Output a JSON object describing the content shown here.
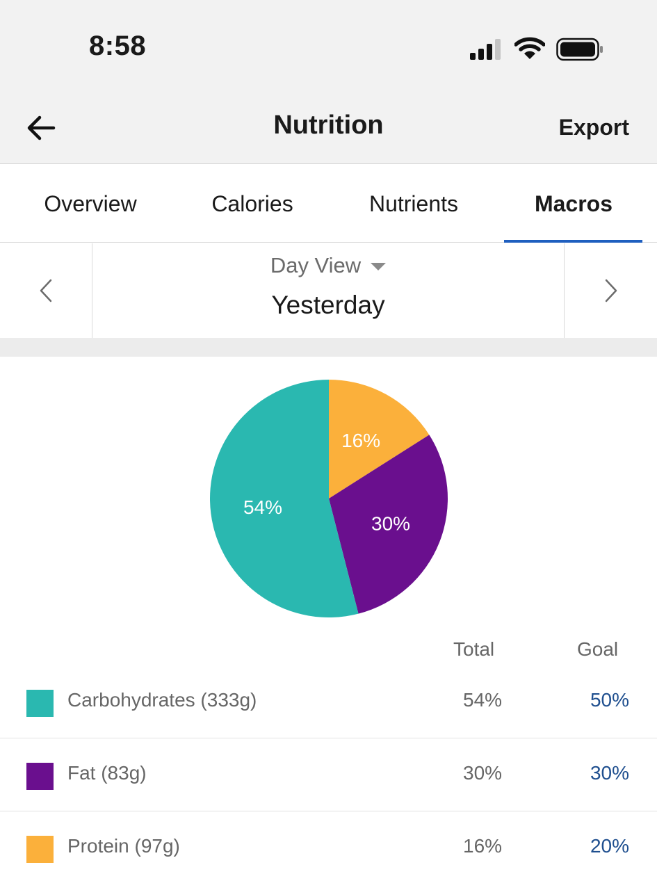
{
  "status_bar": {
    "time": "8:58"
  },
  "nav": {
    "title": "Nutrition",
    "export_label": "Export"
  },
  "tabs": [
    {
      "label": "Overview",
      "active": false
    },
    {
      "label": "Calories",
      "active": false
    },
    {
      "label": "Nutrients",
      "active": false
    },
    {
      "label": "Macros",
      "active": true
    }
  ],
  "date_nav": {
    "view_label": "Day View",
    "date_label": "Yesterday"
  },
  "colors": {
    "carbs": "#2ab8b0",
    "fat": "#6a0f8e",
    "protein": "#fbb03b",
    "goal_text": "#1f4f8f",
    "tab_active": "#1f5fbf"
  },
  "chart_data": {
    "type": "pie",
    "slices": [
      {
        "label": "16%",
        "value": 16,
        "color": "#fbb03b"
      },
      {
        "label": "30%",
        "value": 30,
        "color": "#6a0f8e"
      },
      {
        "label": "54%",
        "value": 54,
        "color": "#2ab8b0"
      }
    ]
  },
  "table": {
    "total_header": "Total",
    "goal_header": "Goal",
    "rows": [
      {
        "name": "Carbohydrates (333g)",
        "total": "54%",
        "goal": "50%",
        "color": "#2ab8b0"
      },
      {
        "name": "Fat (83g)",
        "total": "30%",
        "goal": "30%",
        "color": "#6a0f8e"
      },
      {
        "name": "Protein (97g)",
        "total": "16%",
        "goal": "20%",
        "color": "#fbb03b"
      }
    ]
  }
}
